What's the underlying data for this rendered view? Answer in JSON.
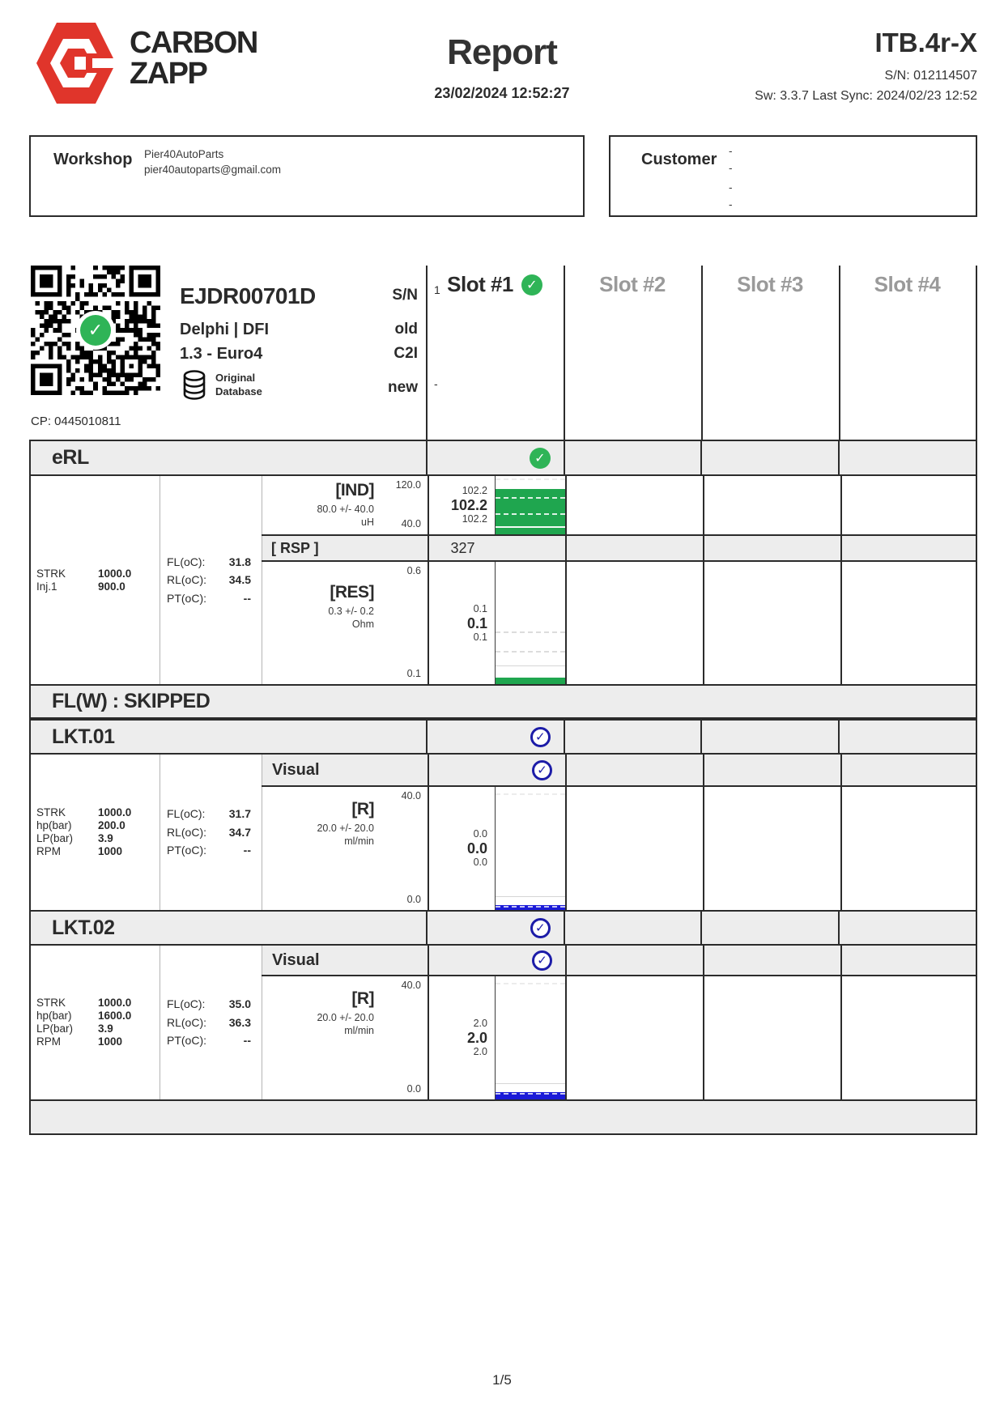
{
  "header": {
    "brand_line1": "CARBON",
    "brand_line2": "ZAPP",
    "title": "Report",
    "datetime": "23/02/2024 12:52:27",
    "device": "ITB.4r-X",
    "serial": "S/N: 012114507",
    "sync": "Sw: 3.3.7 Last Sync: 2024/02/23 12:52"
  },
  "workshop": {
    "label": "Workshop",
    "name": "Pier40AutoParts",
    "email": "pier40autoparts@gmail.com"
  },
  "customer": {
    "label": "Customer",
    "lines": [
      "-",
      "-",
      "-",
      "-"
    ]
  },
  "slot_columns": [
    "Slot #1",
    "Slot #2",
    "Slot #3",
    "Slot #4"
  ],
  "injector": {
    "model": "EJDR00701D",
    "maker": "Delphi | DFI",
    "class": "1.3 - Euro4",
    "db_label1": "Original",
    "db_label2": "Database",
    "cp": "CP: 0445010811",
    "fields": [
      {
        "label": "S/N",
        "slot1": "1"
      },
      {
        "label": "old",
        "slot1": ""
      },
      {
        "label": "C2I",
        "slot1": ""
      },
      {
        "label": "new",
        "slot1": "-"
      }
    ]
  },
  "tests": {
    "erl": {
      "title": "eRL",
      "conditions": [
        {
          "label": "STRK",
          "value": "1000.0"
        },
        {
          "label": "Inj.1",
          "value": "900.0"
        }
      ],
      "temps": [
        {
          "label": "FL(oC):",
          "value": "31.8"
        },
        {
          "label": "RL(oC):",
          "value": "34.5"
        },
        {
          "label": "PT(oC):",
          "value": "--"
        }
      ],
      "ind": {
        "name": "[IND]",
        "tolerance": "80.0 +/- 40.0",
        "unit": "uH",
        "scale_top": "120.0",
        "scale_bottom": "40.0",
        "min": "102.2",
        "avg": "102.2",
        "max": "102.2",
        "bar_pct": 78
      },
      "rsp": {
        "name": "[ RSP ]",
        "value": "327"
      },
      "res": {
        "name": "[RES]",
        "tolerance": "0.3 +/- 0.2",
        "unit": "Ohm",
        "scale_top": "0.6",
        "scale_bottom": "0.1",
        "min": "0.1",
        "avg": "0.1",
        "max": "0.1",
        "bar_pct": 5
      }
    },
    "flw": {
      "title": "FL(W) : SKIPPED"
    },
    "lkt01": {
      "title": "LKT.01",
      "visual_label": "Visual",
      "conditions": [
        {
          "label": "STRK",
          "value": "1000.0"
        },
        {
          "label": "hp(bar)",
          "value": "200.0"
        },
        {
          "label": "LP(bar)",
          "value": "3.9"
        },
        {
          "label": "RPM",
          "value": "1000"
        }
      ],
      "temps": [
        {
          "label": "FL(oC):",
          "value": "31.7"
        },
        {
          "label": "RL(oC):",
          "value": "34.7"
        },
        {
          "label": "PT(oC):",
          "value": "--"
        }
      ],
      "r": {
        "name": "[R]",
        "tolerance": "20.0 +/- 20.0",
        "unit": "ml/min",
        "scale_top": "40.0",
        "scale_bottom": "0.0",
        "min": "0.0",
        "avg": "0.0",
        "max": "0.0",
        "bar_pct": 4
      }
    },
    "lkt02": {
      "title": "LKT.02",
      "visual_label": "Visual",
      "conditions": [
        {
          "label": "STRK",
          "value": "1000.0"
        },
        {
          "label": "hp(bar)",
          "value": "1600.0"
        },
        {
          "label": "LP(bar)",
          "value": "3.9"
        },
        {
          "label": "RPM",
          "value": "1000"
        }
      ],
      "temps": [
        {
          "label": "FL(oC):",
          "value": "35.0"
        },
        {
          "label": "RL(oC):",
          "value": "36.3"
        },
        {
          "label": "PT(oC):",
          "value": "--"
        }
      ],
      "r": {
        "name": "[R]",
        "tolerance": "20.0 +/- 20.0",
        "unit": "ml/min",
        "scale_top": "40.0",
        "scale_bottom": "0.0",
        "min": "2.0",
        "avg": "2.0",
        "max": "2.0",
        "bar_pct": 6
      }
    }
  },
  "footer": {
    "page": "1/5"
  },
  "colors": {
    "check_green": "#2fb457",
    "bar_green": "#1fa64f",
    "navy": "#1c1ca8",
    "bar_blue": "#1b1bd8"
  }
}
